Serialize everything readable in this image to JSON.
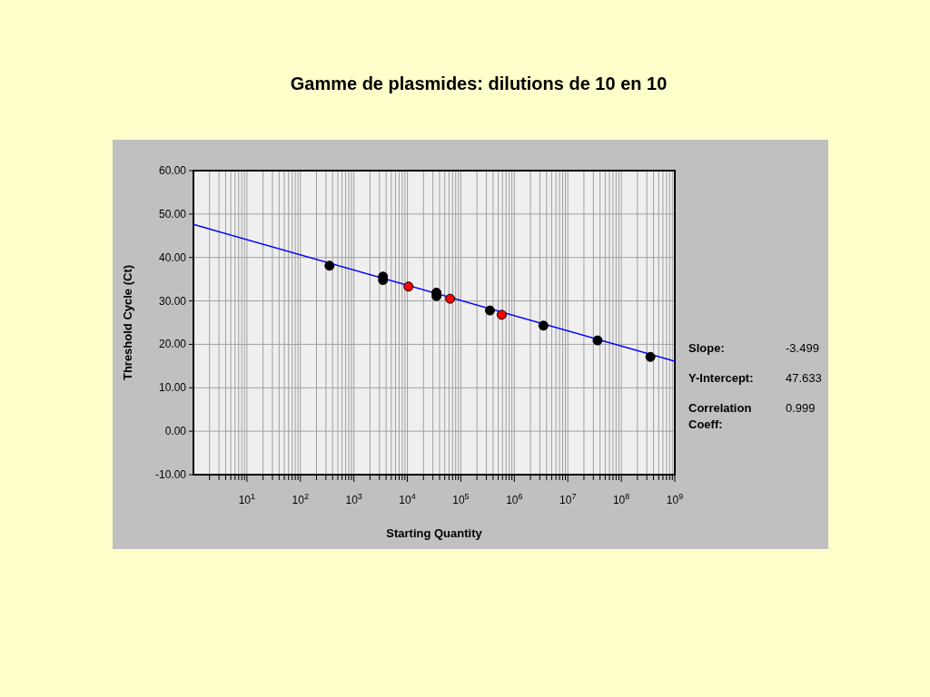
{
  "chart_data": {
    "type": "scatter",
    "title": "Gamme de plasmides:  dilutions de 10 en 10",
    "xlabel": "Starting Quantity",
    "ylabel": "Threshold Cycle (Ct)",
    "log": "x",
    "grid": true,
    "xlim": [
      1,
      1000000000
    ],
    "ylim": [
      -10,
      60
    ],
    "xticks": [
      {
        "value": 10,
        "label": "10$^{1}$"
      },
      {
        "value": 100,
        "label": "10$^{2}$"
      },
      {
        "value": 1000,
        "label": "10$^{3}$"
      },
      {
        "value": 10000,
        "label": "10$^{4}$"
      },
      {
        "value": 100000,
        "label": "10$^{5}$"
      },
      {
        "value": 1000000,
        "label": "10$^{6}$"
      },
      {
        "value": 10000000,
        "label": "10$^{7}$"
      },
      {
        "value": 100000000,
        "label": "10$^{8}$"
      },
      {
        "value": 1000000000,
        "label": "10$^{9}$"
      }
    ],
    "yticks": [
      {
        "value": 60,
        "label": "60.00"
      },
      {
        "value": 50,
        "label": "50.00"
      },
      {
        "value": 40,
        "label": "40.00"
      },
      {
        "value": 30,
        "label": "30.00"
      },
      {
        "value": 20,
        "label": "20.00"
      },
      {
        "value": 10,
        "label": "10.00"
      },
      {
        "value": 0,
        "label": "0.00"
      },
      {
        "value": -10,
        "label": "-10.00"
      }
    ],
    "annotations": [
      "Slope:",
      "-3.499",
      "Y-Intercept:",
      "47.633",
      "Correlation Coeff:",
      "0.999"
    ],
    "series": [
      {
        "type": "line",
        "color": "#0000ff",
        "x": [
          1,
          1000000000
        ],
        "values": [
          47.6,
          16.1
        ]
      },
      {
        "marker": "circle",
        "color": "#000000",
        "x": [
          350,
          3500,
          3500,
          35000,
          35000,
          350000,
          3500000,
          36000000,
          350000000
        ],
        "values": [
          38.1,
          35.6,
          34.8,
          31.9,
          31.1,
          27.8,
          24.3,
          20.9,
          17.1
        ]
      },
      {
        "marker": "circle",
        "color": "#ff0000",
        "x": [
          10500,
          63000,
          580000
        ],
        "values": [
          33.3,
          30.5,
          26.8
        ]
      }
    ]
  }
}
